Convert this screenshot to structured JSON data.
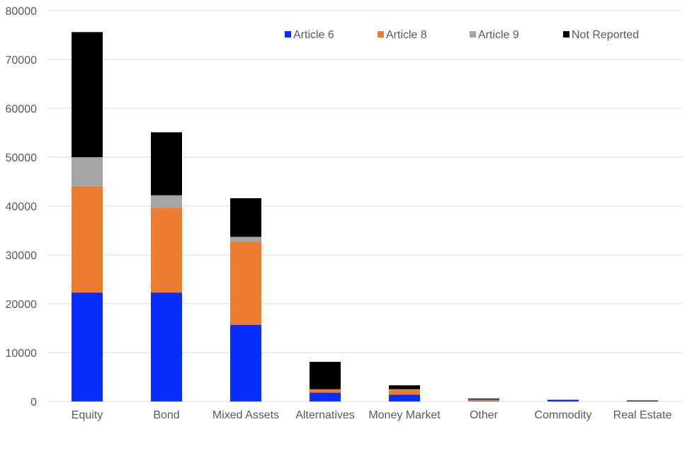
{
  "chart_data": {
    "type": "bar",
    "stacked": true,
    "categories": [
      "Equity",
      "Bond",
      "Mixed Assets",
      "Alternatives",
      "Money Market",
      "Other",
      "Commodity",
      "Real Estate"
    ],
    "series": [
      {
        "name": "Article 6",
        "color": "#0a2cff",
        "values": [
          22300,
          22300,
          15700,
          1800,
          1400,
          100,
          350,
          50
        ]
      },
      {
        "name": "Article 8",
        "color": "#ed7d31",
        "values": [
          21800,
          17400,
          17000,
          700,
          1000,
          300,
          0,
          0
        ]
      },
      {
        "name": "Article 9",
        "color": "#a5a5a5",
        "values": [
          5900,
          2500,
          1000,
          0,
          100,
          0,
          0,
          0
        ]
      },
      {
        "name": "Not Reported",
        "color": "#000000",
        "values": [
          25600,
          12900,
          7900,
          5600,
          800,
          200,
          0,
          150
        ]
      }
    ],
    "yticks": [
      "0",
      "10000",
      "20000",
      "30000",
      "40000",
      "50000",
      "60000",
      "70000",
      "80000"
    ],
    "ylim": [
      0,
      80000
    ],
    "grid": true,
    "legend_position": "top-right",
    "title": "",
    "xlabel": "",
    "ylabel": ""
  }
}
